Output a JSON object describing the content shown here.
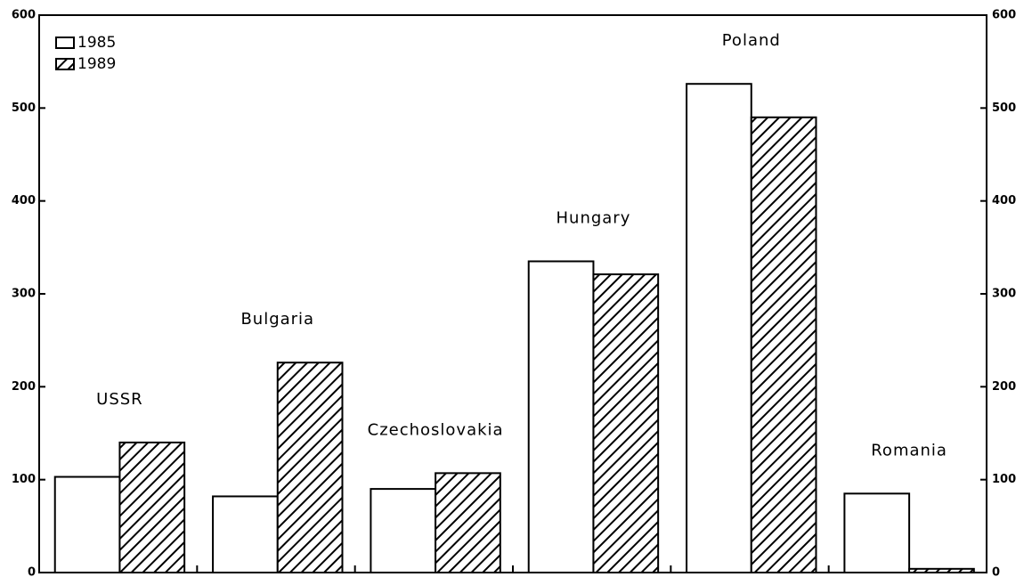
{
  "chart_data": {
    "type": "bar",
    "categories": [
      "USSR",
      "Bulgaria",
      "Czechoslovakia",
      "Hungary",
      "Poland",
      "Romania"
    ],
    "series": [
      {
        "name": "1985",
        "color": "#ffffff",
        "values": [
          103,
          82,
          90,
          335,
          526,
          85
        ]
      },
      {
        "name": "1989",
        "color": "#000000",
        "pattern": "hatch",
        "values": [
          140,
          226,
          107,
          321,
          490,
          4
        ]
      }
    ],
    "ylim": [
      0,
      600
    ],
    "yticks": [
      0,
      100,
      200,
      300,
      400,
      500,
      600
    ],
    "y2lim": [
      0,
      600
    ],
    "y2ticks": [
      0,
      100,
      200,
      300,
      400,
      500,
      600
    ],
    "legend": "upper left",
    "grid": false
  }
}
